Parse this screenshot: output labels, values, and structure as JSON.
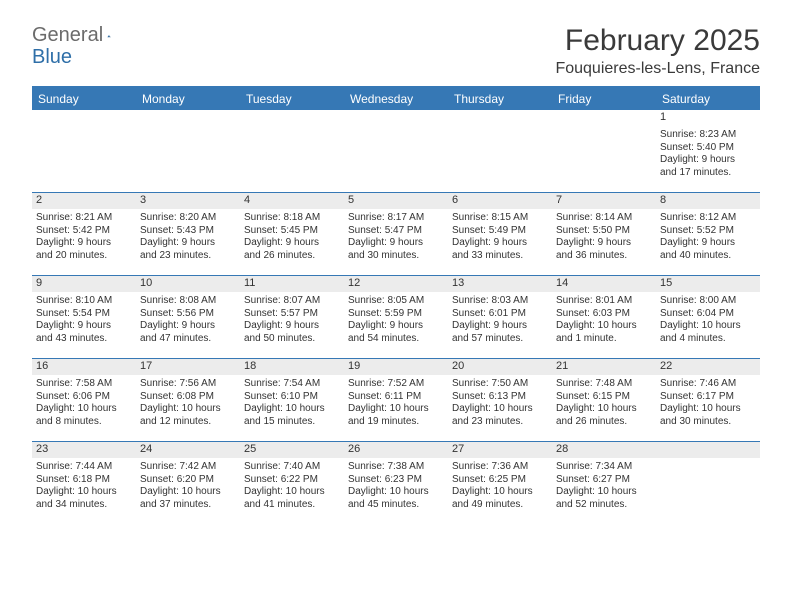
{
  "logo": {
    "word1": "General",
    "word2": "Blue"
  },
  "title": "February 2025",
  "location": "Fouquieres-les-Lens, France",
  "colors": {
    "header_bar": "#3678b5",
    "daynum_bg": "#ececec",
    "text": "#333333",
    "logo_gray": "#6b6b6b",
    "logo_blue": "#2f6fa8"
  },
  "weekdays": [
    "Sunday",
    "Monday",
    "Tuesday",
    "Wednesday",
    "Thursday",
    "Friday",
    "Saturday"
  ],
  "weeks": [
    [
      {
        "n": "",
        "empty": true
      },
      {
        "n": "",
        "empty": true
      },
      {
        "n": "",
        "empty": true
      },
      {
        "n": "",
        "empty": true
      },
      {
        "n": "",
        "empty": true
      },
      {
        "n": "",
        "empty": true
      },
      {
        "n": "1",
        "sr": "Sunrise: 8:23 AM",
        "ss": "Sunset: 5:40 PM",
        "d1": "Daylight: 9 hours",
        "d2": "and 17 minutes."
      }
    ],
    [
      {
        "n": "2",
        "sr": "Sunrise: 8:21 AM",
        "ss": "Sunset: 5:42 PM",
        "d1": "Daylight: 9 hours",
        "d2": "and 20 minutes."
      },
      {
        "n": "3",
        "sr": "Sunrise: 8:20 AM",
        "ss": "Sunset: 5:43 PM",
        "d1": "Daylight: 9 hours",
        "d2": "and 23 minutes."
      },
      {
        "n": "4",
        "sr": "Sunrise: 8:18 AM",
        "ss": "Sunset: 5:45 PM",
        "d1": "Daylight: 9 hours",
        "d2": "and 26 minutes."
      },
      {
        "n": "5",
        "sr": "Sunrise: 8:17 AM",
        "ss": "Sunset: 5:47 PM",
        "d1": "Daylight: 9 hours",
        "d2": "and 30 minutes."
      },
      {
        "n": "6",
        "sr": "Sunrise: 8:15 AM",
        "ss": "Sunset: 5:49 PM",
        "d1": "Daylight: 9 hours",
        "d2": "and 33 minutes."
      },
      {
        "n": "7",
        "sr": "Sunrise: 8:14 AM",
        "ss": "Sunset: 5:50 PM",
        "d1": "Daylight: 9 hours",
        "d2": "and 36 minutes."
      },
      {
        "n": "8",
        "sr": "Sunrise: 8:12 AM",
        "ss": "Sunset: 5:52 PM",
        "d1": "Daylight: 9 hours",
        "d2": "and 40 minutes."
      }
    ],
    [
      {
        "n": "9",
        "sr": "Sunrise: 8:10 AM",
        "ss": "Sunset: 5:54 PM",
        "d1": "Daylight: 9 hours",
        "d2": "and 43 minutes."
      },
      {
        "n": "10",
        "sr": "Sunrise: 8:08 AM",
        "ss": "Sunset: 5:56 PM",
        "d1": "Daylight: 9 hours",
        "d2": "and 47 minutes."
      },
      {
        "n": "11",
        "sr": "Sunrise: 8:07 AM",
        "ss": "Sunset: 5:57 PM",
        "d1": "Daylight: 9 hours",
        "d2": "and 50 minutes."
      },
      {
        "n": "12",
        "sr": "Sunrise: 8:05 AM",
        "ss": "Sunset: 5:59 PM",
        "d1": "Daylight: 9 hours",
        "d2": "and 54 minutes."
      },
      {
        "n": "13",
        "sr": "Sunrise: 8:03 AM",
        "ss": "Sunset: 6:01 PM",
        "d1": "Daylight: 9 hours",
        "d2": "and 57 minutes."
      },
      {
        "n": "14",
        "sr": "Sunrise: 8:01 AM",
        "ss": "Sunset: 6:03 PM",
        "d1": "Daylight: 10 hours",
        "d2": "and 1 minute."
      },
      {
        "n": "15",
        "sr": "Sunrise: 8:00 AM",
        "ss": "Sunset: 6:04 PM",
        "d1": "Daylight: 10 hours",
        "d2": "and 4 minutes."
      }
    ],
    [
      {
        "n": "16",
        "sr": "Sunrise: 7:58 AM",
        "ss": "Sunset: 6:06 PM",
        "d1": "Daylight: 10 hours",
        "d2": "and 8 minutes."
      },
      {
        "n": "17",
        "sr": "Sunrise: 7:56 AM",
        "ss": "Sunset: 6:08 PM",
        "d1": "Daylight: 10 hours",
        "d2": "and 12 minutes."
      },
      {
        "n": "18",
        "sr": "Sunrise: 7:54 AM",
        "ss": "Sunset: 6:10 PM",
        "d1": "Daylight: 10 hours",
        "d2": "and 15 minutes."
      },
      {
        "n": "19",
        "sr": "Sunrise: 7:52 AM",
        "ss": "Sunset: 6:11 PM",
        "d1": "Daylight: 10 hours",
        "d2": "and 19 minutes."
      },
      {
        "n": "20",
        "sr": "Sunrise: 7:50 AM",
        "ss": "Sunset: 6:13 PM",
        "d1": "Daylight: 10 hours",
        "d2": "and 23 minutes."
      },
      {
        "n": "21",
        "sr": "Sunrise: 7:48 AM",
        "ss": "Sunset: 6:15 PM",
        "d1": "Daylight: 10 hours",
        "d2": "and 26 minutes."
      },
      {
        "n": "22",
        "sr": "Sunrise: 7:46 AM",
        "ss": "Sunset: 6:17 PM",
        "d1": "Daylight: 10 hours",
        "d2": "and 30 minutes."
      }
    ],
    [
      {
        "n": "23",
        "sr": "Sunrise: 7:44 AM",
        "ss": "Sunset: 6:18 PM",
        "d1": "Daylight: 10 hours",
        "d2": "and 34 minutes."
      },
      {
        "n": "24",
        "sr": "Sunrise: 7:42 AM",
        "ss": "Sunset: 6:20 PM",
        "d1": "Daylight: 10 hours",
        "d2": "and 37 minutes."
      },
      {
        "n": "25",
        "sr": "Sunrise: 7:40 AM",
        "ss": "Sunset: 6:22 PM",
        "d1": "Daylight: 10 hours",
        "d2": "and 41 minutes."
      },
      {
        "n": "26",
        "sr": "Sunrise: 7:38 AM",
        "ss": "Sunset: 6:23 PM",
        "d1": "Daylight: 10 hours",
        "d2": "and 45 minutes."
      },
      {
        "n": "27",
        "sr": "Sunrise: 7:36 AM",
        "ss": "Sunset: 6:25 PM",
        "d1": "Daylight: 10 hours",
        "d2": "and 49 minutes."
      },
      {
        "n": "28",
        "sr": "Sunrise: 7:34 AM",
        "ss": "Sunset: 6:27 PM",
        "d1": "Daylight: 10 hours",
        "d2": "and 52 minutes."
      },
      {
        "n": "",
        "empty": true
      }
    ]
  ]
}
